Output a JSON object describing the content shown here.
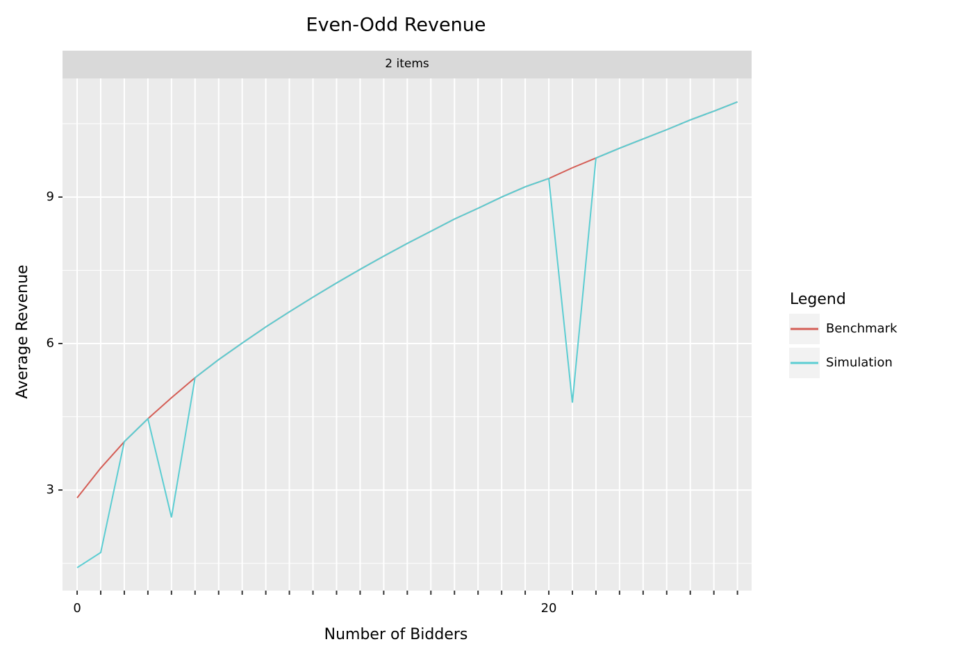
{
  "chart_data": {
    "type": "line",
    "title": "Even-Odd Revenue",
    "facet_label": "2 items",
    "x_label": "Number of Bidders",
    "y_label": "Average Revenue",
    "legend_title": "Legend",
    "x": [
      0,
      1,
      2,
      3,
      4,
      5,
      6,
      7,
      8,
      9,
      10,
      11,
      12,
      13,
      14,
      15,
      16,
      17,
      18,
      19,
      20,
      21,
      22,
      23,
      24,
      25,
      26,
      27,
      28
    ],
    "series": [
      {
        "name": "Benchmark",
        "color": "#d45d55",
        "values": [
          2.84,
          3.45,
          3.99,
          4.46,
          4.89,
          5.3,
          5.67,
          6.01,
          6.34,
          6.65,
          6.95,
          7.24,
          7.52,
          7.79,
          8.05,
          8.3,
          8.55,
          8.77,
          9.0,
          9.21,
          9.38,
          9.6,
          9.8,
          10.0,
          10.19,
          10.38,
          10.58,
          10.76,
          10.95
        ]
      },
      {
        "name": "Simulation",
        "color": "#5bcdd2",
        "values": [
          1.41,
          1.72,
          3.99,
          4.46,
          2.44,
          5.3,
          5.67,
          6.01,
          6.34,
          6.65,
          6.95,
          7.24,
          7.52,
          7.79,
          8.05,
          8.3,
          8.55,
          8.77,
          9.0,
          9.21,
          9.38,
          4.79,
          9.8,
          10.0,
          10.19,
          10.38,
          10.58,
          10.76,
          10.95
        ]
      }
    ],
    "xlim": [
      -0.62,
      28.6
    ],
    "ylim": [
      0.94,
      11.43
    ],
    "xticks": [
      0,
      {
        "value": 1,
        "label": null
      },
      {
        "value": 2,
        "label": null
      },
      {
        "value": 3,
        "label": null
      },
      {
        "value": 4,
        "label": null
      },
      {
        "value": 5,
        "label": null
      },
      {
        "value": 6,
        "label": null
      },
      {
        "value": 7,
        "label": null
      },
      {
        "value": 8,
        "label": null
      },
      {
        "value": 9,
        "label": null
      },
      {
        "value": 10,
        "label": null
      },
      {
        "value": 11,
        "label": null
      },
      {
        "value": 12,
        "label": null
      },
      {
        "value": 13,
        "label": null
      },
      {
        "value": 14,
        "label": null
      },
      {
        "value": 15,
        "label": null
      },
      {
        "value": 16,
        "label": null
      },
      {
        "value": 17,
        "label": null
      },
      {
        "value": 18,
        "label": null
      },
      {
        "value": 19,
        "label": null
      },
      20,
      {
        "value": 21,
        "label": null
      },
      {
        "value": 22,
        "label": null
      },
      {
        "value": 23,
        "label": null
      },
      {
        "value": 24,
        "label": null
      },
      {
        "value": 25,
        "label": null
      },
      {
        "value": 26,
        "label": null
      },
      {
        "value": 27,
        "label": null
      },
      {
        "value": 28,
        "label": null
      }
    ],
    "yticks": [
      3,
      6,
      9
    ],
    "yminorticks": [
      1.5,
      4.5,
      7.5,
      10.5
    ],
    "grid": true,
    "legend_position": "right"
  }
}
